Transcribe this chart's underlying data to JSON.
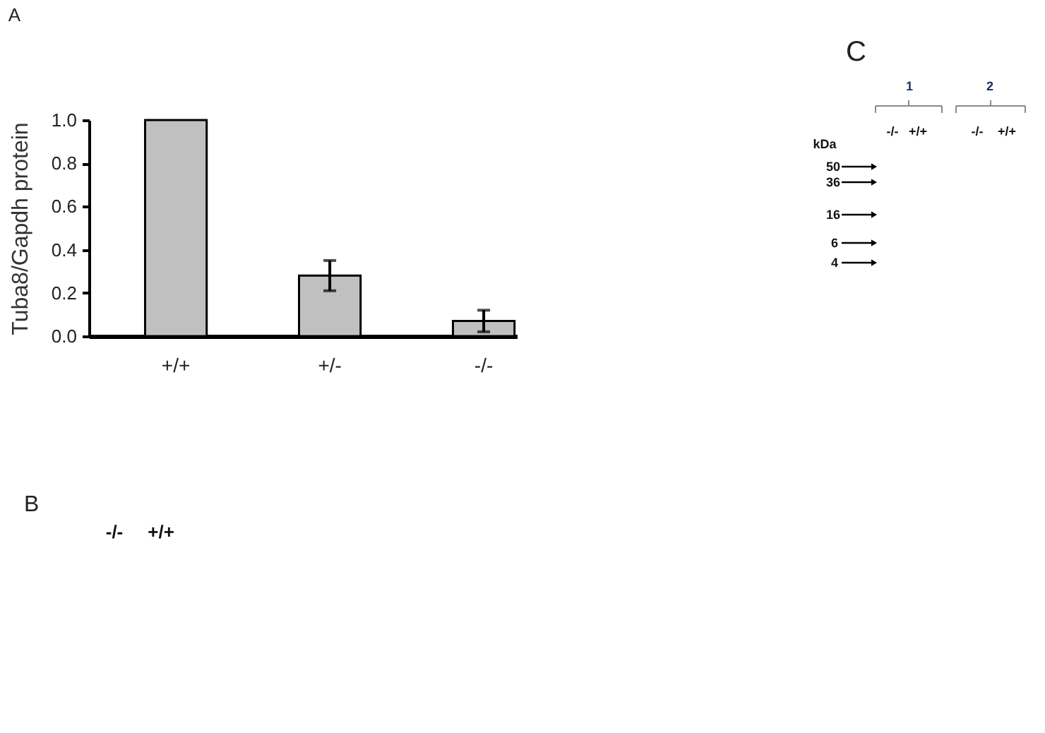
{
  "chart_data": [
    {
      "type": "bar",
      "title": "A",
      "ylabel": "Tuba8/Gapdh protein",
      "categories": [
        "+/+",
        "+/-",
        "-/-"
      ],
      "values": [
        1.0,
        0.28,
        0.07
      ],
      "errors": [
        null,
        0.07,
        0.05
      ],
      "color": "#c0c0c0",
      "ylim": [
        0,
        1.0
      ],
      "yticks": [
        {
          "value": 0,
          "label": "0.0"
        },
        0.2,
        0.4,
        0.6,
        0.8,
        {
          "value": 1.0,
          "label": "1.0"
        }
      ]
    },
    {
      "type": "other",
      "title": "B",
      "annotations": [
        "-/-",
        "+/+"
      ]
    },
    {
      "type": "other",
      "title": "C",
      "annotations": [
        "1",
        "2",
        "-/-",
        "+/+",
        "-/-",
        "+/+",
        "kDa",
        "50",
        "36",
        "16",
        "6",
        "4"
      ]
    }
  ]
}
